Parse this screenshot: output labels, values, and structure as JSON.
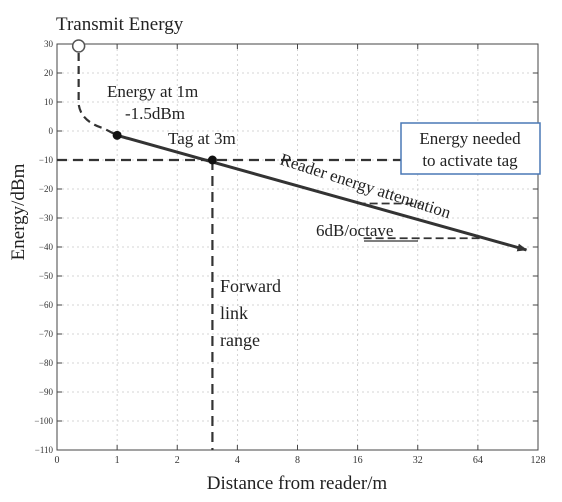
{
  "chart_data": {
    "type": "line",
    "title": "",
    "xlabel": "Distance from reader/m",
    "ylabel": "Energy/dBm",
    "x_scale": "log2",
    "x_ticks": [
      "0",
      "1",
      "2",
      "4",
      "8",
      "16",
      "32",
      "64",
      "128"
    ],
    "y_ticks": [
      "30",
      "20",
      "10",
      "0",
      "−10",
      "−20",
      "−30",
      "−40",
      "−50",
      "−60",
      "−70",
      "−80",
      "−90",
      "−100",
      "−110"
    ],
    "xlim": [
      "0",
      128
    ],
    "ylim": [
      -110,
      30
    ],
    "grid": true,
    "series": [
      {
        "name": "Reader energy attenuation",
        "points": [
          {
            "x": 1,
            "y": -1.5
          },
          {
            "x": 3,
            "y": -10
          },
          {
            "x": 112,
            "y": -41
          }
        ]
      }
    ],
    "threshold_y": -10,
    "annotations": {
      "transmit_energy": "Transmit Energy",
      "energy_at_1m_line1": "Energy at 1m",
      "energy_at_1m_line2": "-1.5dBm",
      "tag_at_3m": "Tag at 3m",
      "energy_needed_line1": "Energy needed",
      "energy_needed_line2": "to activate tag",
      "attenuation_label": "Reader energy attenuation",
      "slope_label": "6dB/octave",
      "forward_line1": "Forward",
      "forward_line2": "link",
      "forward_line3": "range"
    }
  }
}
